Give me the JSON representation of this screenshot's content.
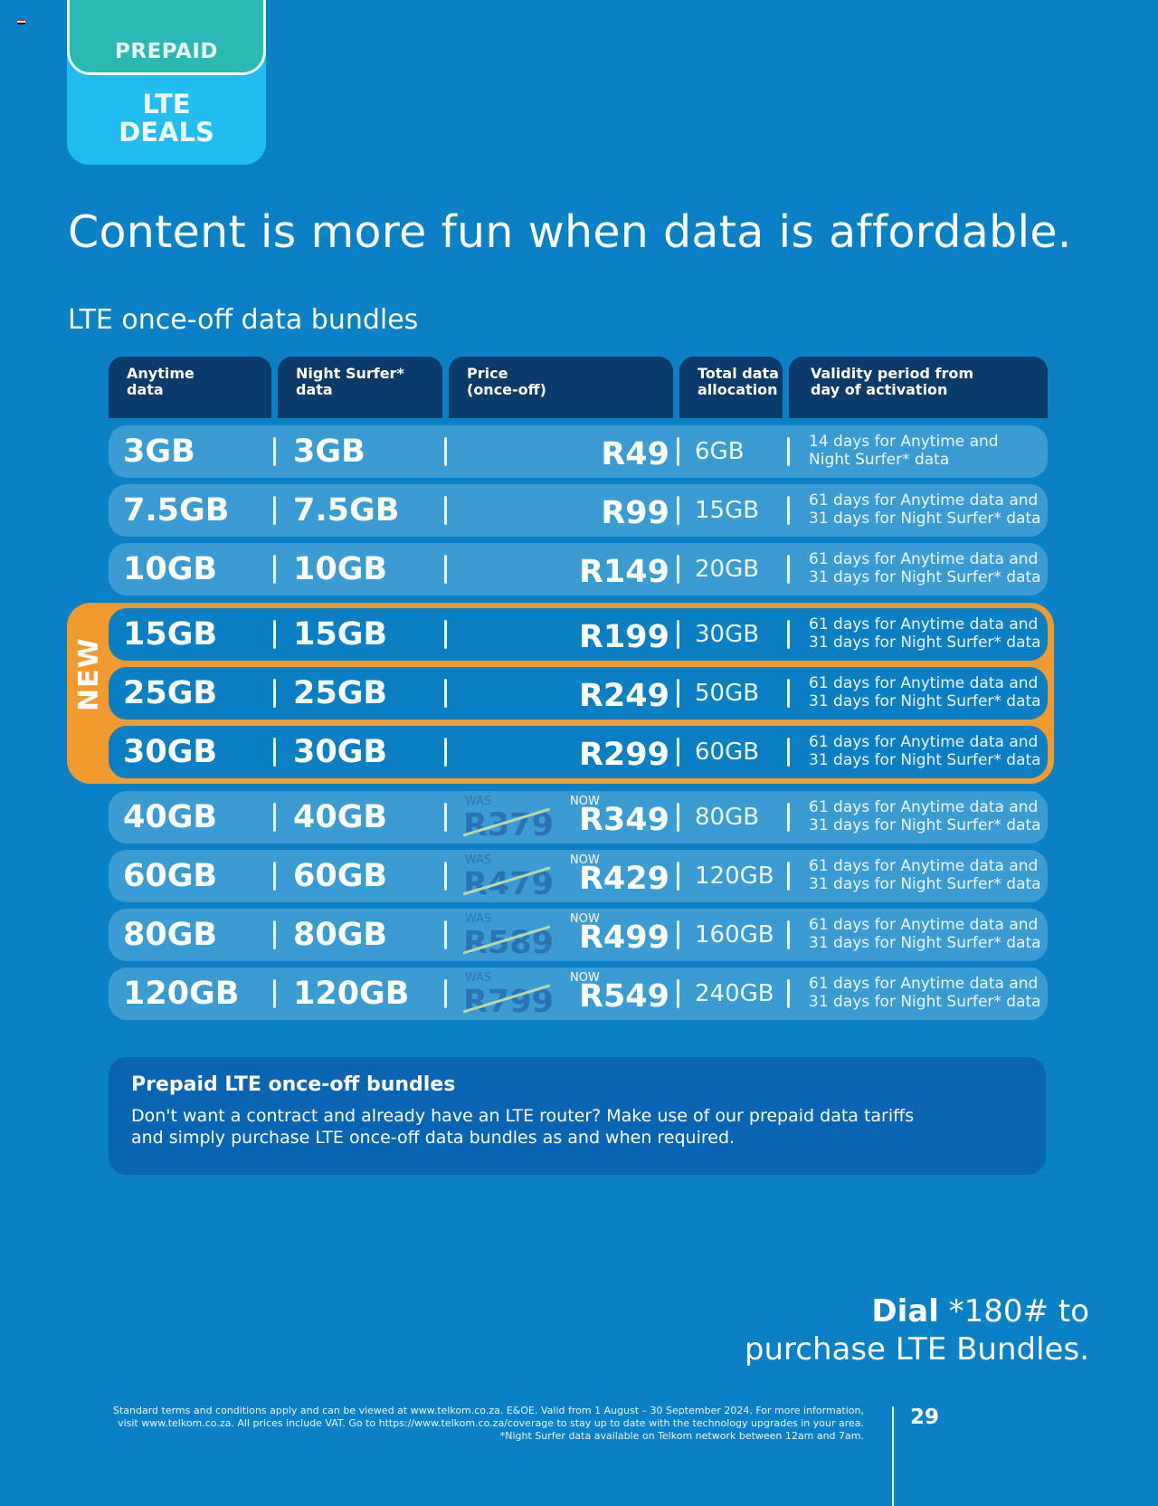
{
  "flag_colors": [
    "#d32f2f",
    "#ffffff",
    "#111111"
  ],
  "tab": {
    "top_label": "PREPAID",
    "bottom_label_line1": "LTE",
    "bottom_label_line2": "DEALS"
  },
  "headline": "Content is more fun when data is affordable.",
  "subhead": "LTE once-off data bundles",
  "table": {
    "headers": [
      {
        "line1": "Anytime",
        "line2": "data"
      },
      {
        "line1": "Night Surfer*",
        "line2": "data"
      },
      {
        "line1": "Price",
        "line2": "(once-off)"
      },
      {
        "line1": "Total data",
        "line2": "allocation"
      },
      {
        "line1": "Validity period from",
        "line2": "day of activation"
      }
    ],
    "new_label": "NEW",
    "was_label": "WAS",
    "now_label": "NOW",
    "rows": [
      {
        "anytime": "3GB",
        "night": "3GB",
        "price": "R49",
        "was": null,
        "total": "6GB",
        "validity1": "14 days for Anytime and",
        "validity2": "Night Surfer* data",
        "is_new": false
      },
      {
        "anytime": "7.5GB",
        "night": "7.5GB",
        "price": "R99",
        "was": null,
        "total": "15GB",
        "validity1": "61 days for Anytime data and",
        "validity2": "31 days for Night Surfer* data",
        "is_new": false
      },
      {
        "anytime": "10GB",
        "night": "10GB",
        "price": "R149",
        "was": null,
        "total": "20GB",
        "validity1": "61 days for Anytime data and",
        "validity2": "31 days for Night Surfer* data",
        "is_new": false
      },
      {
        "anytime": "15GB",
        "night": "15GB",
        "price": "R199",
        "was": null,
        "total": "30GB",
        "validity1": "61 days for Anytime data and",
        "validity2": "31 days for Night Surfer* data",
        "is_new": true
      },
      {
        "anytime": "25GB",
        "night": "25GB",
        "price": "R249",
        "was": null,
        "total": "50GB",
        "validity1": "61 days for Anytime data and",
        "validity2": "31 days for Night Surfer* data",
        "is_new": true
      },
      {
        "anytime": "30GB",
        "night": "30GB",
        "price": "R299",
        "was": null,
        "total": "60GB",
        "validity1": "61 days for Anytime data and",
        "validity2": "31 days for Night Surfer* data",
        "is_new": true
      },
      {
        "anytime": "40GB",
        "night": "40GB",
        "price": "R349",
        "was": "R379",
        "total": "80GB",
        "validity1": "61 days for Anytime data and",
        "validity2": "31 days for Night Surfer* data",
        "is_new": false
      },
      {
        "anytime": "60GB",
        "night": "60GB",
        "price": "R429",
        "was": "R479",
        "total": "120GB",
        "validity1": "61 days for Anytime data and",
        "validity2": "31 days for Night Surfer* data",
        "is_new": false
      },
      {
        "anytime": "80GB",
        "night": "80GB",
        "price": "R499",
        "was": "R589",
        "total": "160GB",
        "validity1": "61 days for Anytime data and",
        "validity2": "31 days for Night Surfer* data",
        "is_new": false
      },
      {
        "anytime": "120GB",
        "night": "120GB",
        "price": "R549",
        "was": "R799",
        "total": "240GB",
        "validity1": "61 days for Anytime data and",
        "validity2": "31 days for Night Surfer* data",
        "is_new": false
      }
    ]
  },
  "info_box": {
    "title": "Prepaid LTE once-off bundles",
    "body_line1": "Don't want a contract and already have an LTE router? Make use of our prepaid data tariffs",
    "body_line2": "and simply purchase LTE once-off data bundles as and when required."
  },
  "dial": {
    "bold": "Dial",
    "code": " *180# to",
    "line2": "purchase LTE Bundles."
  },
  "fine_print": {
    "line1": "Standard terms and conditions apply and can be viewed at www.telkom.co.za. E&OE. Valid from 1 August – 30 September 2024. For more information,",
    "line2": "visit www.telkom.co.za. All prices include VAT. Go to https://www.telkom.co.za/coverage to stay up to date with the technology upgrades in your area.",
    "line3": "*Night Surfer data available on Telkom network between 12am and 7am."
  },
  "page_number": "29",
  "colors": {
    "background": "#0a80c6",
    "header": "#0b3b6b",
    "row": "#3b9bd3",
    "row_new": "#0b7fc4",
    "new_highlight": "#f39a2f",
    "prepaid_tab": "#2bb9b4",
    "lte_tab": "#22bdf0"
  }
}
